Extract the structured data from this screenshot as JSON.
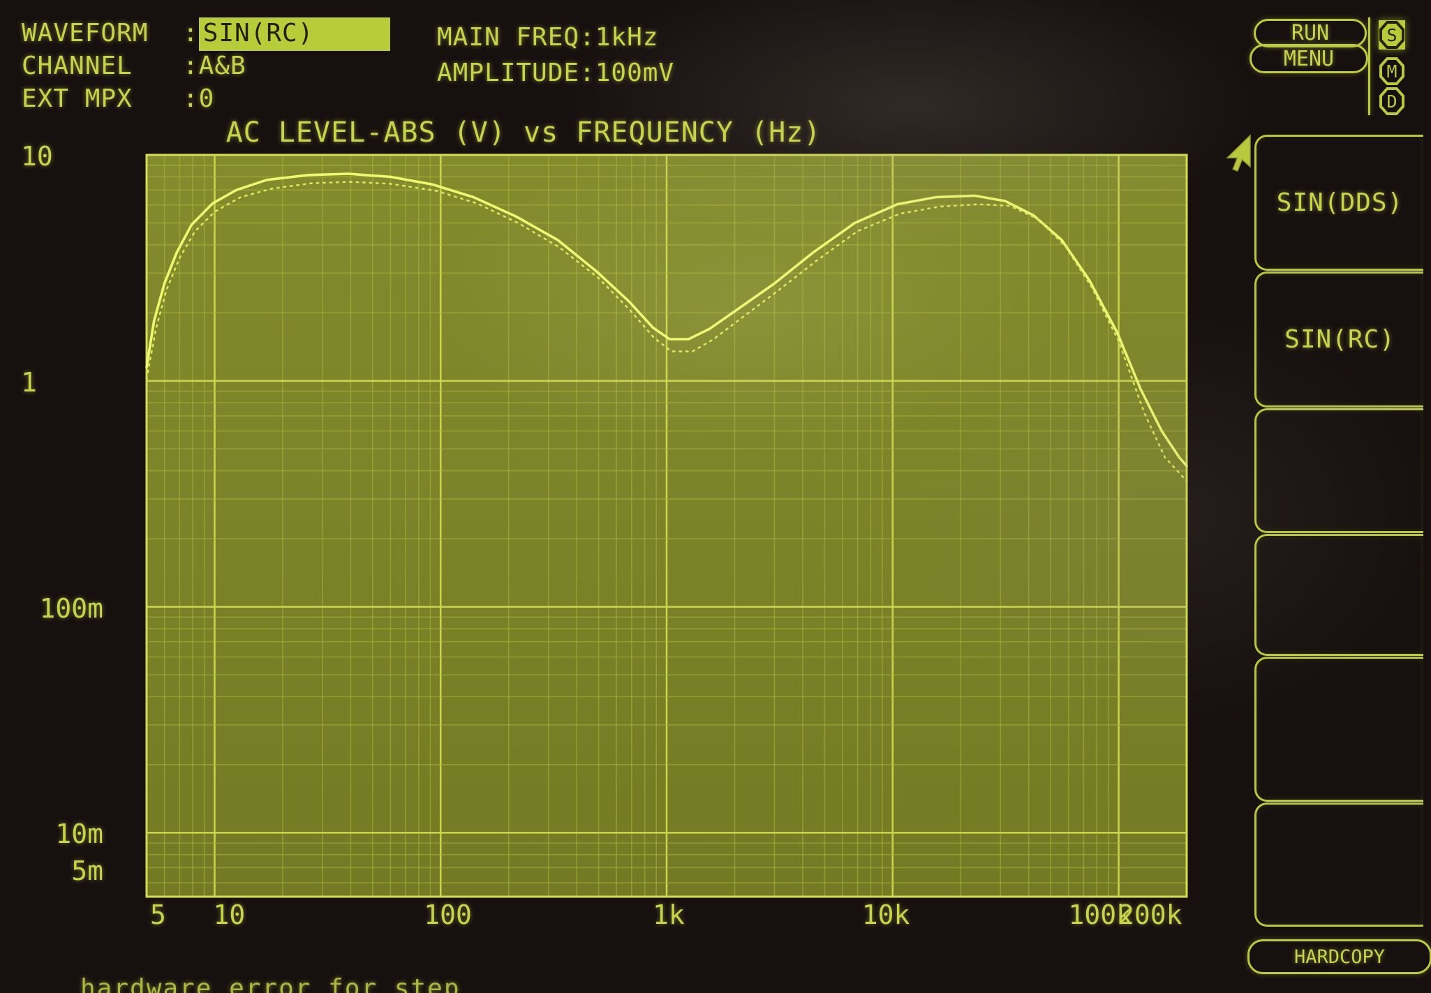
{
  "colors": {
    "screen_bg": "#17100f",
    "phosphor_text": "#c6d44c",
    "highlight_bg": "#b6cc39",
    "grid_bg": "#7a8028",
    "grid_minor_line": "#aab63a",
    "grid_major_line": "#cdd94e",
    "trace_solid": "#eef870",
    "trace_dotted": "#d9e75c"
  },
  "header": {
    "waveform_label": "WAVEFORM",
    "waveform_colon": ":",
    "waveform_value": "SIN(RC)",
    "channel_label": "CHANNEL",
    "channel_value": ":A&B",
    "extmpx_label": "EXT MPX",
    "extmpx_value": ":0",
    "main_freq": "MAIN FREQ:1kHz",
    "amplitude": "AMPLITUDE:100mV"
  },
  "top_right": {
    "run_label": "RUN",
    "menu_label": "MENU",
    "badges": [
      {
        "letter": "S",
        "active": true
      },
      {
        "letter": "M",
        "active": false
      },
      {
        "letter": "D",
        "active": false
      }
    ]
  },
  "side_menu": {
    "buttons": [
      {
        "label": "SIN(DDS)"
      },
      {
        "label": "SIN(RC)"
      },
      {
        "label": ""
      },
      {
        "label": ""
      },
      {
        "label": ""
      },
      {
        "label": ""
      }
    ],
    "hardcopy_label": "HARDCOPY"
  },
  "status_text": "hardware error for step",
  "chart_data": {
    "type": "line",
    "title": "AC LEVEL-ABS (V) vs FREQUENCY (Hz)",
    "xlabel": "FREQUENCY (Hz)",
    "ylabel": "AC LEVEL-ABS (V)",
    "x_scale": "log",
    "y_scale": "log",
    "xlim": [
      5,
      200000
    ],
    "ylim": [
      0.0052,
      10
    ],
    "grid": true,
    "legend": "none",
    "xticks": [
      {
        "label": "5",
        "f": 5,
        "dx": 17
      },
      {
        "label": "10",
        "f": 10,
        "dx": 22
      },
      {
        "label": "100",
        "f": 100,
        "dx": 12
      },
      {
        "label": "1k",
        "f": 1000,
        "dx": 4
      },
      {
        "label": "10k",
        "f": 10000,
        "dx": -8
      },
      {
        "label": "100k",
        "f": 100000,
        "dx": -24
      },
      {
        "label": "200k",
        "f": 200000,
        "dx": -50
      }
    ],
    "yticks": [
      {
        "label": "10",
        "v": 10,
        "align": "left"
      },
      {
        "label": "1",
        "v": 1,
        "align": "left"
      },
      {
        "label": "100m",
        "v": 0.1,
        "align": "right"
      },
      {
        "label": "10m",
        "v": 0.01,
        "align": "right"
      },
      {
        "label": "5m",
        "v": 0.005,
        "align": "right"
      }
    ],
    "series": [
      {
        "name": "response-trace-solid",
        "style": "solid",
        "points": [
          [
            5,
            1.15
          ],
          [
            5.4,
            1.85
          ],
          [
            6,
            2.7
          ],
          [
            6.8,
            3.7
          ],
          [
            7.9,
            4.9
          ],
          [
            9.8,
            6.1
          ],
          [
            12.5,
            7.0
          ],
          [
            17,
            7.75
          ],
          [
            26,
            8.15
          ],
          [
            39,
            8.25
          ],
          [
            60,
            8.0
          ],
          [
            92,
            7.4
          ],
          [
            140,
            6.5
          ],
          [
            215,
            5.35
          ],
          [
            330,
            4.2
          ],
          [
            490,
            3.05
          ],
          [
            680,
            2.25
          ],
          [
            870,
            1.72
          ],
          [
            1030,
            1.53
          ],
          [
            1250,
            1.53
          ],
          [
            1550,
            1.7
          ],
          [
            2100,
            2.1
          ],
          [
            3000,
            2.7
          ],
          [
            4450,
            3.7
          ],
          [
            6800,
            5.0
          ],
          [
            10500,
            6.05
          ],
          [
            15500,
            6.5
          ],
          [
            23000,
            6.6
          ],
          [
            31500,
            6.25
          ],
          [
            42000,
            5.4
          ],
          [
            56000,
            4.2
          ],
          [
            74000,
            2.8
          ],
          [
            99000,
            1.62
          ],
          [
            125000,
            0.92
          ],
          [
            155000,
            0.6
          ],
          [
            185000,
            0.46
          ],
          [
            200000,
            0.42
          ]
        ]
      },
      {
        "name": "response-trace-dotted",
        "style": "dotted",
        "points": [
          [
            5,
            1.02
          ],
          [
            5.5,
            1.7
          ],
          [
            6.1,
            2.5
          ],
          [
            7,
            3.5
          ],
          [
            8.2,
            4.6
          ],
          [
            10,
            5.6
          ],
          [
            13,
            6.5
          ],
          [
            18,
            7.1
          ],
          [
            27,
            7.5
          ],
          [
            40,
            7.6
          ],
          [
            60,
            7.45
          ],
          [
            95,
            6.95
          ],
          [
            145,
            6.1
          ],
          [
            220,
            5.0
          ],
          [
            335,
            3.9
          ],
          [
            500,
            2.85
          ],
          [
            690,
            2.05
          ],
          [
            880,
            1.55
          ],
          [
            1050,
            1.35
          ],
          [
            1300,
            1.35
          ],
          [
            1600,
            1.52
          ],
          [
            2150,
            1.9
          ],
          [
            3100,
            2.5
          ],
          [
            4600,
            3.4
          ],
          [
            7000,
            4.6
          ],
          [
            10800,
            5.5
          ],
          [
            16000,
            5.9
          ],
          [
            24000,
            6.05
          ],
          [
            33000,
            5.95
          ],
          [
            44000,
            5.2
          ],
          [
            58000,
            3.95
          ],
          [
            76000,
            2.6
          ],
          [
            100000,
            1.5
          ],
          [
            130000,
            0.72
          ],
          [
            160000,
            0.46
          ],
          [
            200000,
            0.36
          ]
        ]
      }
    ]
  }
}
